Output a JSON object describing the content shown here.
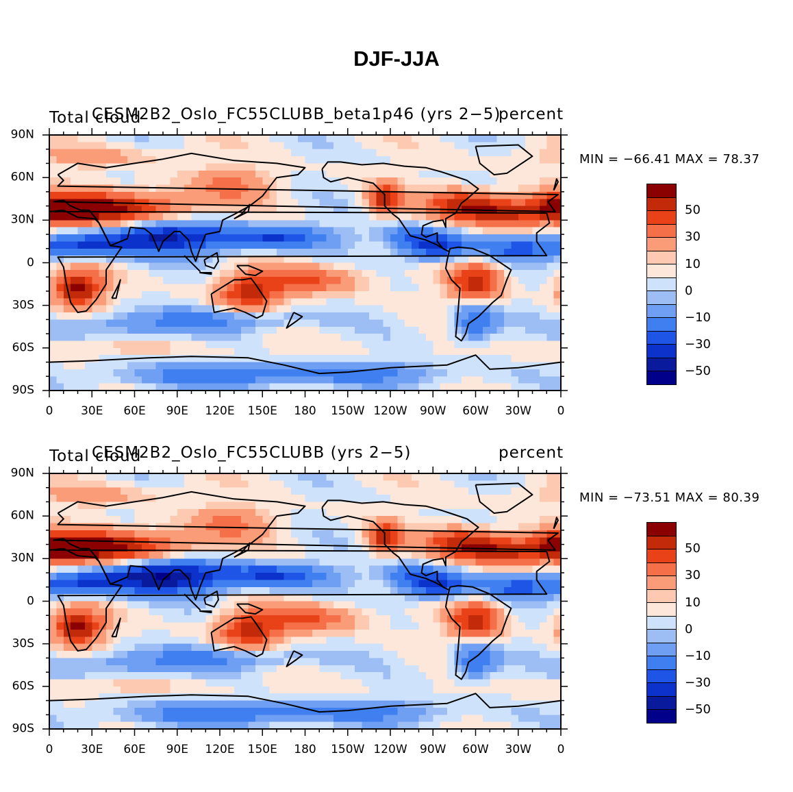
{
  "figure": {
    "title": "DJF-JJA"
  },
  "colors": {
    "levels": [
      "#00008b",
      "#0a1a9c",
      "#0b33cc",
      "#1f55e6",
      "#3f7ff0",
      "#6f9ff3",
      "#9dbdf5",
      "#cfe2fb",
      "#fde7da",
      "#fdc9b0",
      "#fa9c78",
      "#f56f48",
      "#ea4218",
      "#c32a0a",
      "#8b0000"
    ],
    "coastline": "#000000"
  },
  "colorbar": {
    "labels": [
      "50",
      "30",
      "10",
      "0",
      "−10",
      "−30",
      "−50"
    ]
  },
  "axes": {
    "lat_ticks": [
      "90N",
      "60N",
      "30N",
      "0",
      "30S",
      "60S",
      "90S"
    ],
    "lon_ticks": [
      "0",
      "30E",
      "60E",
      "90E",
      "120E",
      "150E",
      "180",
      "150W",
      "120W",
      "90W",
      "60W",
      "30W",
      "0"
    ]
  },
  "panels": [
    {
      "variable": "Total cloud",
      "case": "CESM2B2_Oslo_FC55CLUBB_beta1p46 (yrs 2−5)",
      "units": "percent",
      "min": "−66.41",
      "max": "78.37",
      "minmax_text": "MIN = −66.41 MAX =  78.37"
    },
    {
      "variable": "Total cloud",
      "case": "CESM2B2_Oslo_FC55CLUBB (yrs 2−5)",
      "units": "percent",
      "min": "−73.51",
      "max": "80.39",
      "minmax_text": "MIN = −73.51 MAX =  80.39"
    }
  ]
}
